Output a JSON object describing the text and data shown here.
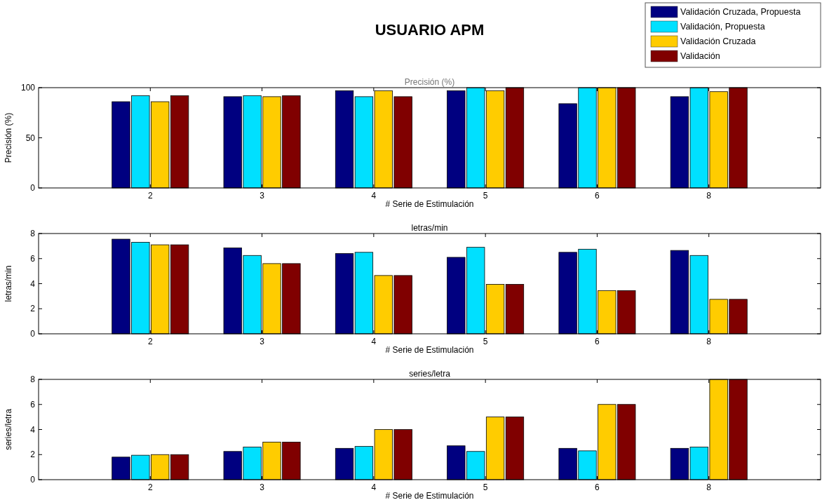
{
  "chart_data": [
    {
      "type": "bar",
      "title": "USUARIO APM",
      "subtitle": "Precisión (%)",
      "xlabel": "# Serie de Estimulación",
      "ylabel": "Precisión (%)",
      "categories": [
        "2",
        "3",
        "4",
        "5",
        "6",
        "8"
      ],
      "ylim": [
        0,
        100
      ],
      "yticks": [
        0,
        50,
        100
      ],
      "legend": "top right",
      "grid": false,
      "series": [
        {
          "name": "Validación Cruzada, Propuesta",
          "color": "#000080",
          "values": [
            86,
            91,
            97,
            97,
            84,
            91
          ]
        },
        {
          "name": "Validación, Propuesta",
          "color": "#00e0ff",
          "values": [
            92,
            92,
            91,
            100,
            100,
            100
          ]
        },
        {
          "name": "Validación Cruzada",
          "color": "#ffcc00",
          "values": [
            86,
            91,
            97,
            97,
            100,
            96
          ]
        },
        {
          "name": "Validación",
          "color": "#800000",
          "values": [
            92,
            92,
            91,
            100,
            100,
            100
          ]
        }
      ]
    },
    {
      "type": "bar",
      "subtitle": "letras/min",
      "xlabel": "# Serie de Estimulación",
      "ylabel": "letras/min",
      "categories": [
        "2",
        "3",
        "4",
        "5",
        "6",
        "8"
      ],
      "ylim": [
        0,
        8
      ],
      "yticks": [
        0,
        2,
        4,
        6,
        8
      ],
      "grid": false,
      "series": [
        {
          "color": "#000080",
          "values": [
            7.55,
            6.85,
            6.4,
            6.1,
            6.5,
            6.65
          ]
        },
        {
          "color": "#00e0ff",
          "values": [
            7.3,
            6.25,
            6.5,
            6.9,
            6.75,
            6.25
          ]
        },
        {
          "color": "#ffcc00",
          "values": [
            7.1,
            5.6,
            4.65,
            3.95,
            3.45,
            2.75
          ]
        },
        {
          "color": "#800000",
          "values": [
            7.1,
            5.6,
            4.65,
            3.95,
            3.45,
            2.75
          ]
        }
      ]
    },
    {
      "type": "bar",
      "subtitle": "series/letra",
      "xlabel": "# Serie de Estimulación",
      "ylabel": "series/letra",
      "categories": [
        "2",
        "3",
        "4",
        "5",
        "6",
        "8"
      ],
      "ylim": [
        0,
        8
      ],
      "yticks": [
        0,
        2,
        4,
        6,
        8
      ],
      "grid": false,
      "series": [
        {
          "color": "#000080",
          "values": [
            1.8,
            2.25,
            2.5,
            2.7,
            2.5,
            2.5
          ]
        },
        {
          "color": "#00e0ff",
          "values": [
            1.95,
            2.6,
            2.65,
            2.25,
            2.3,
            2.6
          ]
        },
        {
          "color": "#ffcc00",
          "values": [
            2,
            3,
            4,
            5,
            6,
            8
          ]
        },
        {
          "color": "#800000",
          "values": [
            2,
            3,
            4,
            5,
            6,
            8
          ]
        }
      ]
    }
  ]
}
